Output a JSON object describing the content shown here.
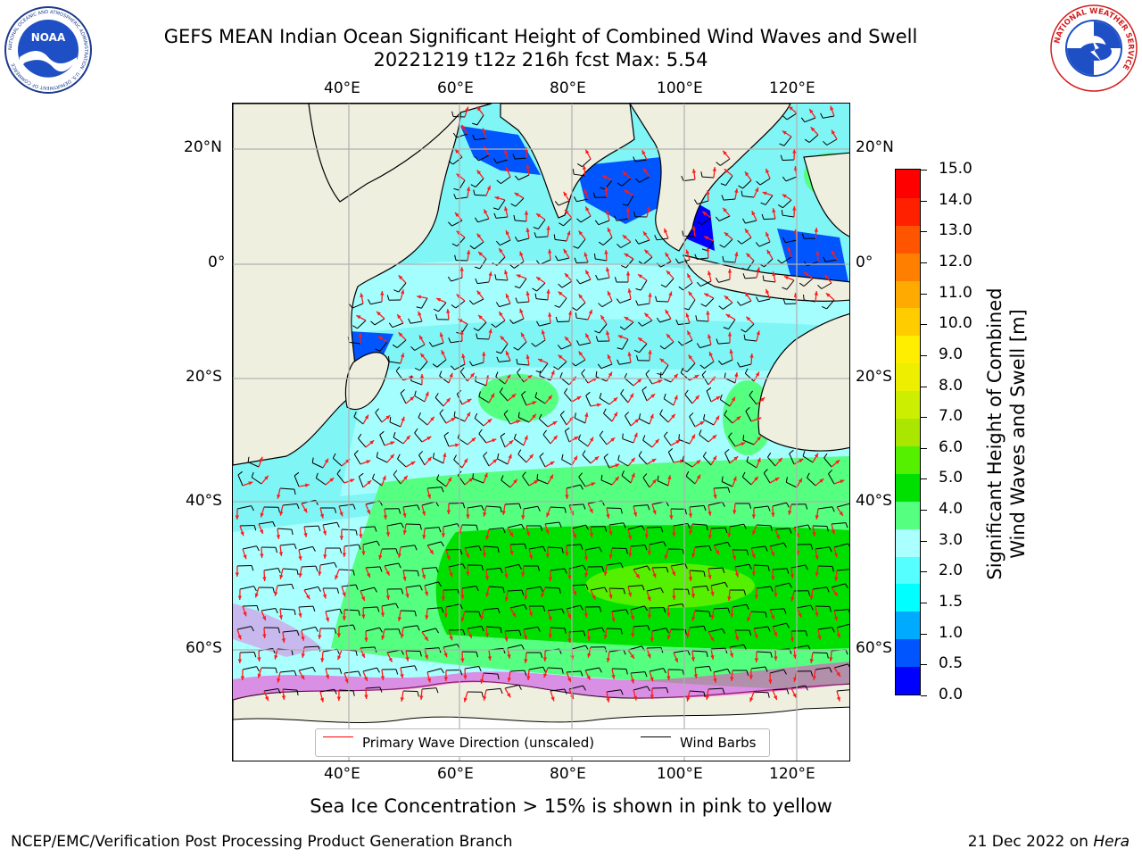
{
  "header": {
    "title_line1": "GEFS MEAN Indian Ocean Significant Height of Combined Wind Waves and Swell",
    "title_line2": "20221219 t12z 216h fcst   Max: 5.54",
    "noaa_logo_text": "NOAA",
    "noaa_ring_text": "NATIONAL OCEANIC AND ATMOSPHERIC ADMINISTRATION · U.S. DEPARTMENT OF COMMERCE",
    "nws_ring_text": "NATIONAL WEATHER SERVICE"
  },
  "map": {
    "lon_labels": [
      "40°E",
      "60°E",
      "80°E",
      "100°E",
      "120°E"
    ],
    "lat_labels_left": [
      "20°N",
      "0°",
      "20°S",
      "40°S",
      "60°S"
    ],
    "lat_labels_right": [
      "20°N",
      "0°",
      "20°S",
      "40°S",
      "60°S"
    ],
    "colors": {
      "ocean_base": "#7ff5f5",
      "land": "#efefe0",
      "grid": "#b0b0b0",
      "barb": "#000000",
      "wave_arrow": "#ff1a1a",
      "sea_ice": "#ff33cc"
    }
  },
  "legend": {
    "wave_label": "Primary Wave Direction (unscaled)",
    "barb_label": "Wind Barbs",
    "wave_color": "#ff0000",
    "barb_color": "#000000"
  },
  "colorbar": {
    "title_line1": "Significant Height of Combined",
    "title_line2": "Wind Waves and Swell [m]",
    "ticks": [
      "15.0",
      "14.0",
      "13.0",
      "12.0",
      "11.0",
      "10.0",
      "9.0",
      "8.0",
      "7.0",
      "6.0",
      "5.0",
      "4.0",
      "3.0",
      "2.0",
      "1.5",
      "1.0",
      "0.5",
      "0.0"
    ],
    "colors": [
      "#0000ff",
      "#0055ff",
      "#00aaff",
      "#00ffff",
      "#55ffff",
      "#aaffff",
      "#55ff80",
      "#00e000",
      "#55ef00",
      "#aae600",
      "#ccee00",
      "#eeee00",
      "#ffee00",
      "#ffcc00",
      "#ffaa00",
      "#ff8000",
      "#ff5500",
      "#ff2000",
      "#ff0000"
    ]
  },
  "footer": {
    "ice_note": "Sea Ice Concentration > 15% is shown in pink to yellow",
    "left": "NCEP/EMC/Verification Post Processing Product Generation Branch",
    "right_prefix": "21 Dec 2022 on ",
    "right_host": "Hera"
  }
}
